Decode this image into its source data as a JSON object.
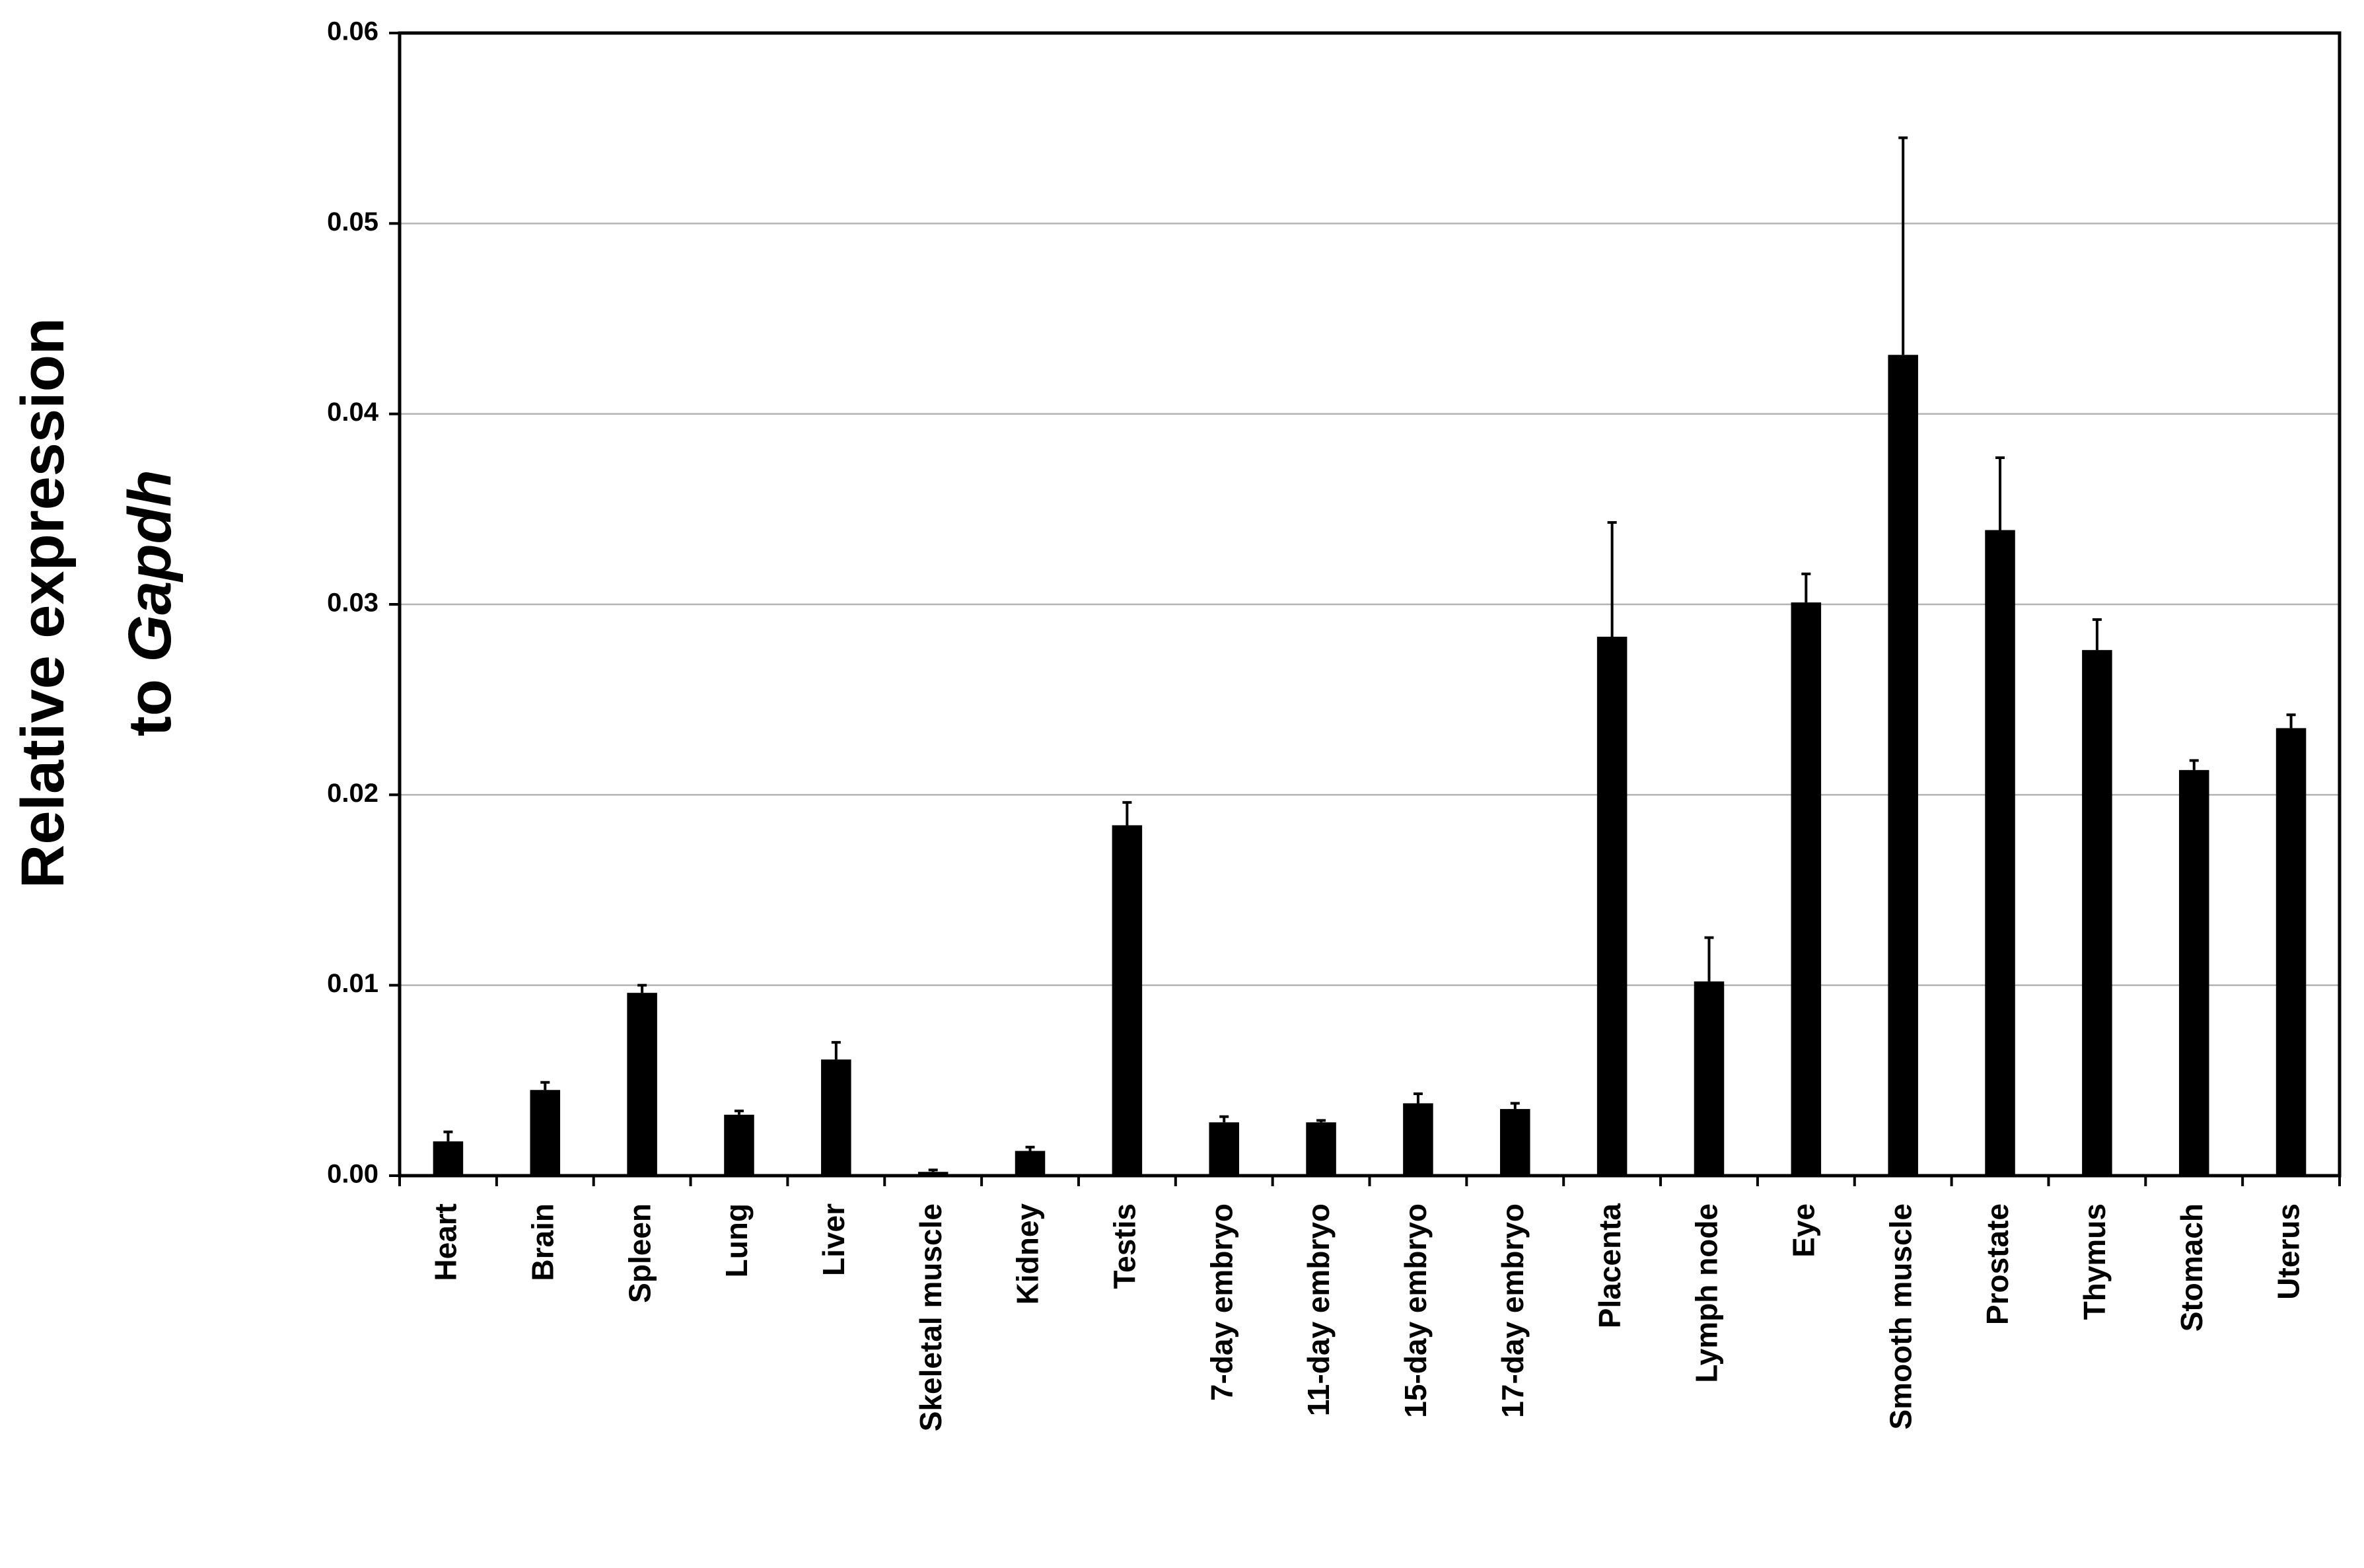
{
  "chart_data": {
    "type": "bar",
    "y_label": {
      "line1": "Relative expression",
      "line2_prefix": "to",
      "line2_italic": "Gapdh"
    },
    "categories": [
      "Heart",
      "Brain",
      "Spleen",
      "Lung",
      "Liver",
      "Skeletal muscle",
      "Kidney",
      "Testis",
      "7-day embryo",
      "11-day embryo",
      "15-day embryo",
      "17-day embryo",
      "Placenta",
      "Lymph node",
      "Eye",
      "Smooth muscle",
      "Prostate",
      "Thymus",
      "Stomach",
      "Uterus"
    ],
    "values": [
      0.0018,
      0.0045,
      0.0096,
      0.0032,
      0.0061,
      0.0002,
      0.0013,
      0.0184,
      0.0028,
      0.0028,
      0.0038,
      0.0035,
      0.0283,
      0.0102,
      0.0301,
      0.0431,
      0.0339,
      0.0276,
      0.0213,
      0.0235
    ],
    "errors": [
      0.0005,
      0.0004,
      0.0004,
      0.0002,
      0.0009,
      0.0001,
      0.0002,
      0.0012,
      0.0003,
      0.0001,
      0.0005,
      0.0003,
      0.006,
      0.0023,
      0.0015,
      0.0114,
      0.0038,
      0.0016,
      0.0005,
      0.0007
    ],
    "color": "#000000",
    "ylim": [
      0,
      0.06
    ],
    "yticks": [
      {
        "value": 0,
        "label": "0.00"
      },
      0.01,
      0.02,
      0.03,
      0.04,
      0.05,
      0.06
    ],
    "grid": true
  }
}
